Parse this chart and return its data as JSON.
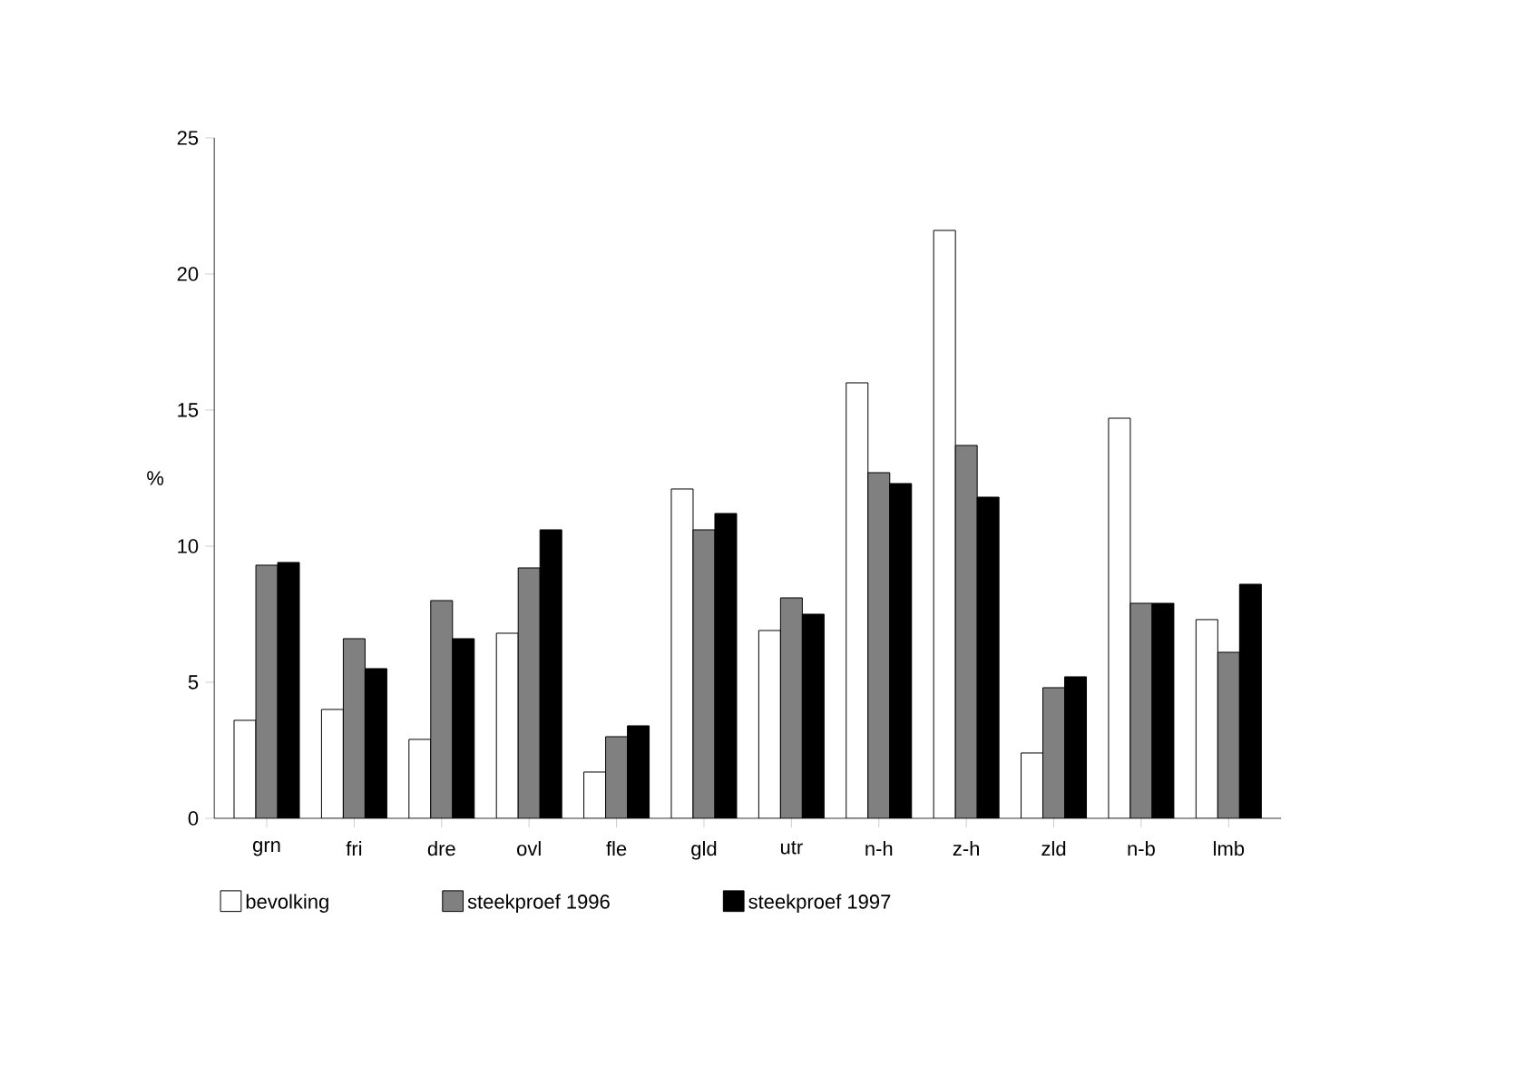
{
  "chart_data": {
    "type": "bar",
    "ylabel": "%",
    "categories": [
      "grn",
      "fri",
      "dre",
      "ovl",
      "fle",
      "gld",
      "utr",
      "n-h",
      "z-h",
      "zld",
      "n-b",
      "lmb"
    ],
    "series": [
      {
        "name": "bevolking",
        "color": "#ffffff",
        "values": [
          3.6,
          4.0,
          2.9,
          6.8,
          1.7,
          12.1,
          6.9,
          16.0,
          21.6,
          2.4,
          14.7,
          7.3
        ]
      },
      {
        "name": "steekproef 1996",
        "color": "#808080",
        "values": [
          9.3,
          6.6,
          8.0,
          9.2,
          3.0,
          10.6,
          8.1,
          12.7,
          13.7,
          4.8,
          7.9,
          6.1
        ]
      },
      {
        "name": "steekproef 1997",
        "color": "#000000",
        "values": [
          9.4,
          5.5,
          6.6,
          10.6,
          3.4,
          11.2,
          7.5,
          12.3,
          11.8,
          5.2,
          7.9,
          8.6
        ]
      }
    ],
    "ylim": [
      0,
      25
    ],
    "yticks": [
      0,
      5,
      10,
      15,
      20,
      25
    ],
    "grid": false,
    "legend": "bottom"
  }
}
